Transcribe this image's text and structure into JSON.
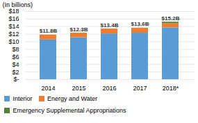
{
  "chart_data": {
    "type": "bar",
    "stacked": true,
    "ylabel": "(In billions)",
    "categories": [
      "2014",
      "2015",
      "2016",
      "2017",
      "2018*"
    ],
    "series": [
      {
        "name": "Interior",
        "color": "#5B9BD5",
        "values": [
          10.5,
          11.1,
          12.1,
          12.3,
          13.7
        ]
      },
      {
        "name": "Energy and Water",
        "color": "#ED7D31",
        "values": [
          1.3,
          1.2,
          1.3,
          1.3,
          1.1
        ]
      },
      {
        "name": "Emergency Supplemental Appropriations",
        "color": "#548235",
        "values": [
          0.0,
          0.0,
          0.0,
          0.0,
          0.4
        ]
      }
    ],
    "ylim": [
      0,
      18
    ],
    "yticks": [
      {
        "value": 0,
        "label": "$-"
      },
      {
        "value": 2,
        "label": "$2"
      },
      {
        "value": 4,
        "label": "$4"
      },
      {
        "value": 6,
        "label": "$6"
      },
      {
        "value": 8,
        "label": "$8"
      },
      {
        "value": 10,
        "label": "$10"
      },
      {
        "value": 12,
        "label": "$12"
      },
      {
        "value": 14,
        "label": "$14"
      },
      {
        "value": 16,
        "label": "$16"
      },
      {
        "value": 18,
        "label": "$18"
      }
    ],
    "grid": true,
    "legend": "bottom",
    "annotations": [
      {
        "x": "2014",
        "y": 11.8,
        "text": "$11.8B"
      },
      {
        "x": "2015",
        "y": 12.3,
        "text": "$12.3B"
      },
      {
        "x": "2016",
        "y": 13.4,
        "text": "$13.4B"
      },
      {
        "x": "2017",
        "y": 13.6,
        "text": "$13.6B"
      },
      {
        "x": "2018*",
        "y": 15.2,
        "text": "$15.2B"
      }
    ]
  }
}
